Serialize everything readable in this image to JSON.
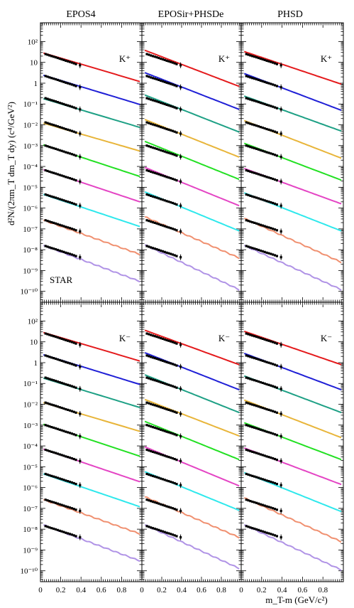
{
  "figure": {
    "col_titles": [
      "EPOS4",
      "EPOSir+PHSDe",
      "PHSD"
    ],
    "ylabel": "d²N/(2πm_T dm_T dy) (c⁴/GeV²)",
    "xlabel": "m_T-m (GeV/c²)",
    "experiment_label": "STAR",
    "x_ticks": [
      "0",
      "0.2",
      "0.4",
      "0.6",
      "0.8"
    ],
    "y_ticks": [
      "10²",
      "10",
      "1",
      "10⁻¹",
      "10⁻²",
      "10⁻³",
      "10⁻⁴",
      "10⁻⁵",
      "10⁻⁶",
      "10⁻⁷",
      "10⁻⁸",
      "10⁻⁹",
      "10⁻¹⁰"
    ],
    "row_particles": [
      "K⁺",
      "K⁻"
    ]
  },
  "chart_data": {
    "type": "line",
    "y_scale": "log",
    "ylim": [
      3e-11,
      800
    ],
    "xlim": [
      0,
      1.0
    ],
    "grid": false,
    "series_colors": [
      "#e41a1c",
      "#1f1fd6",
      "#1ea085",
      "#e8b53a",
      "#22e022",
      "#e445c4",
      "#2ee8ec",
      "#f09070",
      "#b093e6"
    ],
    "marker_color": "#000000",
    "data_points_x": [
      0.05,
      0.07,
      0.09,
      0.11,
      0.13,
      0.15,
      0.17,
      0.19,
      0.21,
      0.23,
      0.25,
      0.27,
      0.29,
      0.31,
      0.33,
      0.35,
      0.39
    ],
    "data_points_shape": [
      1.0,
      0.93,
      0.86,
      0.8,
      0.75,
      0.7,
      0.65,
      0.6,
      0.56,
      0.52,
      0.48,
      0.45,
      0.42,
      0.39,
      0.36,
      0.33,
      0.29
    ],
    "panels": [
      {
        "row": "K⁺",
        "column": "EPOS4",
        "curve_start": [
          28,
          2.4,
          0.18,
          0.012,
          0.0011,
          7e-05,
          4.5e-06,
          2.6e-07,
          1.6e-08
        ],
        "curve_end_x1": [
          1.2,
          0.095,
          0.0075,
          0.00055,
          3.3e-05,
          2e-06,
          1.3e-07,
          6e-09,
          3e-10
        ],
        "data_start": [
          25,
          2.2,
          0.19,
          0.013,
          0.001,
          6.5e-05,
          4.5e-06,
          2.6e-07,
          1.5e-08
        ]
      },
      {
        "row": "K⁺",
        "column": "EPOSir+PHSDe",
        "curve_start": [
          38,
          3.2,
          0.27,
          0.018,
          0.0016,
          9e-05,
          6e-06,
          3.8e-07,
          1.7e-08
        ],
        "curve_end_x1": [
          0.7,
          0.055,
          0.0045,
          0.00028,
          2.4e-05,
          1.3e-06,
          8e-08,
          4e-09,
          1.2e-10
        ],
        "data_start": [
          25,
          2.2,
          0.19,
          0.013,
          0.001,
          6.5e-05,
          4.5e-06,
          2.6e-07,
          1.5e-08
        ]
      },
      {
        "row": "K⁺",
        "column": "PHSD",
        "curve_start": [
          33,
          2.9,
          0.24,
          0.016,
          0.0013,
          8e-05,
          5.4e-06,
          3.2e-07,
          1.6e-08
        ],
        "curve_end_x1": [
          0.9,
          0.05,
          0.005,
          0.00025,
          2.2e-05,
          1.6e-06,
          8e-08,
          2.5e-09,
          1.2e-10
        ],
        "data_start": [
          25,
          2.2,
          0.19,
          0.013,
          0.001,
          6.5e-05,
          4.5e-06,
          2.6e-07,
          1.5e-08
        ]
      },
      {
        "row": "K⁻",
        "column": "EPOS4",
        "curve_start": [
          28,
          2.4,
          0.18,
          0.012,
          0.0011,
          7e-05,
          4.5e-06,
          2.6e-07,
          1.6e-08
        ],
        "curve_end_x1": [
          1.2,
          0.09,
          0.007,
          0.0005,
          3.2e-05,
          1.9e-06,
          1.2e-07,
          6e-09,
          3e-10
        ],
        "data_start": [
          25,
          2.2,
          0.19,
          0.012,
          0.001,
          6.5e-05,
          4.5e-06,
          2.6e-07,
          1.4e-08
        ]
      },
      {
        "row": "K⁻",
        "column": "EPOSir+PHSDe",
        "curve_start": [
          36,
          3.0,
          0.26,
          0.017,
          0.0015,
          9e-05,
          5.8e-06,
          3.6e-07,
          1.6e-08
        ],
        "curve_end_x1": [
          0.8,
          0.05,
          0.004,
          0.0003,
          2.2e-05,
          1.2e-06,
          8e-08,
          4e-09,
          1.3e-10
        ],
        "data_start": [
          25,
          2.2,
          0.19,
          0.012,
          0.001,
          6.5e-05,
          4.5e-06,
          2.6e-07,
          1.4e-08
        ]
      },
      {
        "row": "K⁻",
        "column": "PHSD",
        "curve_start": [
          32,
          2.8,
          0.23,
          0.016,
          0.0013,
          8e-05,
          5.2e-06,
          3.2e-07,
          1.6e-08
        ],
        "curve_end_x1": [
          0.8,
          0.05,
          0.004,
          0.00025,
          2.2e-05,
          1.4e-06,
          7e-08,
          2.5e-09,
          1.1e-10
        ],
        "data_start": [
          25,
          2.2,
          0.19,
          0.012,
          0.001,
          6.5e-05,
          4.5e-06,
          2.6e-07,
          1.4e-08
        ]
      }
    ]
  }
}
